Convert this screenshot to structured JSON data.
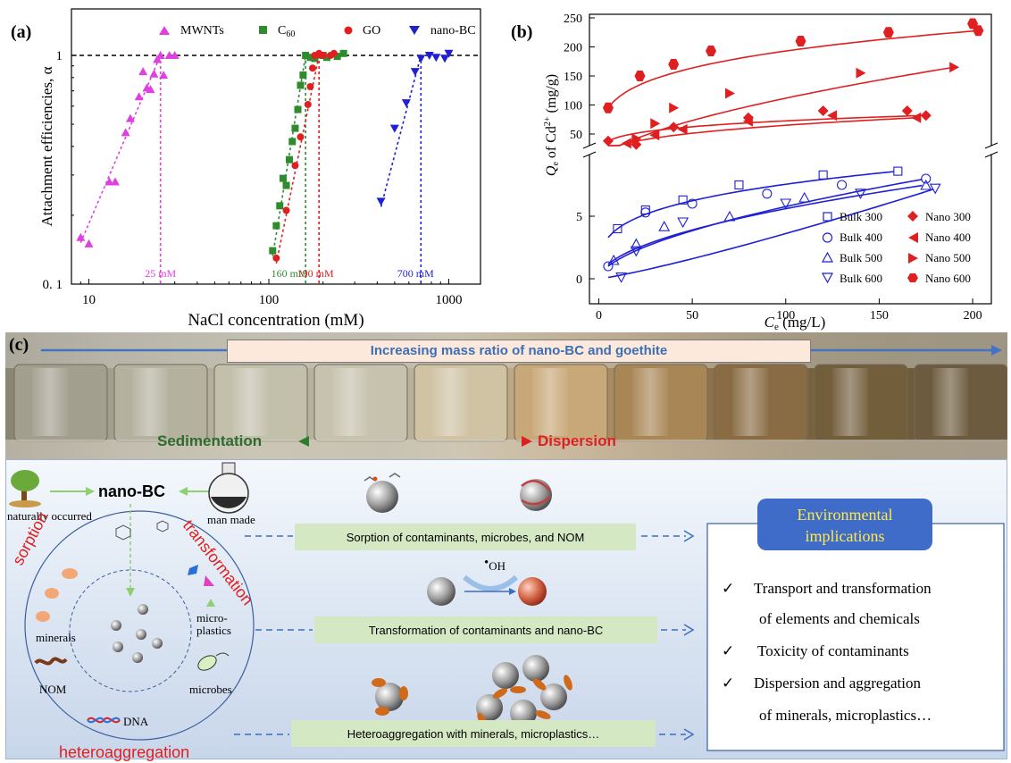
{
  "panel_a": {
    "label": "(a)",
    "ylabel": "Attachment efficiencies, α",
    "xlabel": "NaCl concentration (mM)",
    "legend": [
      "MWNTs",
      "C60",
      "GO",
      "nano-BC"
    ],
    "ytick_1": "1",
    "ytick_01": "0. 1",
    "xticks": [
      "10",
      "100",
      "1000"
    ],
    "annotations": [
      "25 mM",
      "160 mM",
      "190 mM",
      "700 mM"
    ],
    "colors": {
      "MWNTs": "#e040e0",
      "C60": "#2e8b2e",
      "GO": "#e02020",
      "nano-BC": "#1f1fd6"
    }
  },
  "panel_b": {
    "label": "(b)",
    "ylabel_parts": [
      "Q",
      "e",
      " of Cd",
      "2+",
      " (mg/g)"
    ],
    "xlabel_parts": [
      "C",
      "e",
      " (mg/L)"
    ],
    "yticks_upper": [
      "250",
      "200",
      "150",
      "100",
      "50"
    ],
    "yticks_lower": [
      "5",
      "0"
    ],
    "xticks": [
      "0",
      "50",
      "100",
      "150",
      "200"
    ],
    "legend_bulk": [
      "Bulk 300",
      "Bulk 400",
      "Bulk 500",
      "Bulk 600"
    ],
    "legend_nano": [
      "Nano 300",
      "Nano 400",
      "Nano 500",
      "Nano 600"
    ]
  },
  "panel_c": {
    "label": "(c)",
    "arrow_text": "Increasing mass ratio of nano-BC and goethite",
    "sedimentation": "Sedimentation",
    "dispersion": "Dispersion",
    "nano_bc": "nano-BC",
    "naturally": "naturally occurred",
    "man_made": "man made",
    "sorption": "sorption",
    "transformation": "transformation",
    "heteroaggregation": "heteroaggregation",
    "minerals": "minerals",
    "microplastics": "micro-\nplastics",
    "nom": "NOM",
    "microbes": "microbes",
    "dna": "DNA",
    "oh": "OH",
    "box1": "Sorption of contaminants, microbes, and NOM",
    "box2": "Transformation of  contaminants and nano-BC",
    "box3": "Heteroaggregation with minerals, microplastics…",
    "env_title": [
      "Environmental",
      "implications"
    ],
    "env_items": [
      "Transport and transformation",
      "of elements  and chemicals",
      "Toxicity of contaminants",
      "Dispersion and aggregation",
      "of minerals,  microplastics…"
    ]
  },
  "chart_data": [
    {
      "type": "scatter",
      "title": "",
      "xlabel": "NaCl concentration (mM)",
      "ylabel": "Attachment efficiencies, α",
      "xscale": "log",
      "yscale": "log",
      "xlim": [
        8,
        1500
      ],
      "ylim": [
        0.1,
        1.4
      ],
      "series": [
        {
          "name": "MWNTs",
          "x": [
            9,
            10,
            13,
            14,
            16,
            17,
            19,
            20,
            21,
            22,
            23,
            24,
            25,
            26,
            28,
            30
          ],
          "y": [
            0.16,
            0.15,
            0.28,
            0.28,
            0.46,
            0.53,
            0.66,
            0.85,
            0.72,
            0.71,
            0.83,
            0.96,
            1.0,
            0.82,
            1.0,
            1.0
          ]
        },
        {
          "name": "C60",
          "x": [
            105,
            110,
            115,
            120,
            125,
            130,
            135,
            140,
            145,
            150,
            155,
            160,
            170,
            180,
            200,
            210,
            240,
            260
          ],
          "y": [
            0.14,
            0.18,
            0.22,
            0.29,
            0.27,
            0.35,
            0.42,
            0.48,
            0.58,
            0.74,
            0.82,
            1.0,
            0.98,
            0.97,
            1.0,
            0.98,
            0.99,
            1.02
          ]
        },
        {
          "name": "GO",
          "x": [
            110,
            125,
            140,
            150,
            165,
            170,
            175,
            180,
            190,
            200,
            220,
            230
          ],
          "y": [
            0.13,
            0.21,
            0.33,
            0.44,
            0.61,
            0.73,
            0.88,
            1.0,
            1.02,
            1.0,
            1.0,
            1.02
          ]
        },
        {
          "name": "nano-BC",
          "x": [
            420,
            500,
            580,
            650,
            700,
            780,
            850,
            950,
            1000
          ],
          "y": [
            0.23,
            0.48,
            0.62,
            0.85,
            0.97,
            1.0,
            0.98,
            0.97,
            1.02
          ]
        }
      ],
      "vlines_mM": [
        25,
        160,
        190,
        700
      ]
    },
    {
      "type": "scatter",
      "title": "",
      "xlabel": "Ce (mg/L)",
      "ylabel": "Qe of Cd2+ (mg/g)",
      "xlim": [
        -5,
        210
      ],
      "broken_axis": true,
      "ylim_lower": [
        0,
        10
      ],
      "ylim_upper": [
        30,
        250
      ],
      "series": [
        {
          "name": "Nano 300",
          "x": [
            5,
            20,
            40,
            80,
            120,
            165,
            175
          ],
          "y": [
            38,
            32,
            62,
            78,
            90,
            90,
            82
          ]
        },
        {
          "name": "Nano 400",
          "x": [
            15,
            30,
            45,
            80,
            125,
            170
          ],
          "y": [
            34,
            48,
            58,
            72,
            82,
            78
          ]
        },
        {
          "name": "Nano 500",
          "x": [
            20,
            30,
            40,
            70,
            140,
            190
          ],
          "y": [
            42,
            68,
            95,
            120,
            155,
            165
          ]
        },
        {
          "name": "Nano 600",
          "x": [
            5,
            22,
            40,
            60,
            108,
            155,
            200,
            203
          ],
          "y": [
            95,
            150,
            170,
            193,
            210,
            225,
            240,
            228
          ]
        },
        {
          "name": "Bulk 300",
          "x": [
            10,
            25,
            45,
            75,
            120,
            160
          ],
          "y": [
            4.0,
            5.5,
            6.3,
            7.5,
            8.3,
            8.6
          ]
        },
        {
          "name": "Bulk 400",
          "x": [
            5,
            25,
            50,
            90,
            130,
            175
          ],
          "y": [
            1.0,
            5.3,
            6.0,
            6.8,
            7.5,
            8.0
          ]
        },
        {
          "name": "Bulk 500",
          "x": [
            8,
            20,
            35,
            70,
            110,
            175
          ],
          "y": [
            1.5,
            2.8,
            4.2,
            5.0,
            6.5,
            7.5
          ]
        },
        {
          "name": "Bulk 600",
          "x": [
            12,
            20,
            45,
            100,
            140,
            180
          ],
          "y": [
            0.1,
            2.2,
            4.5,
            6.0,
            6.8,
            7.2
          ]
        }
      ]
    }
  ]
}
